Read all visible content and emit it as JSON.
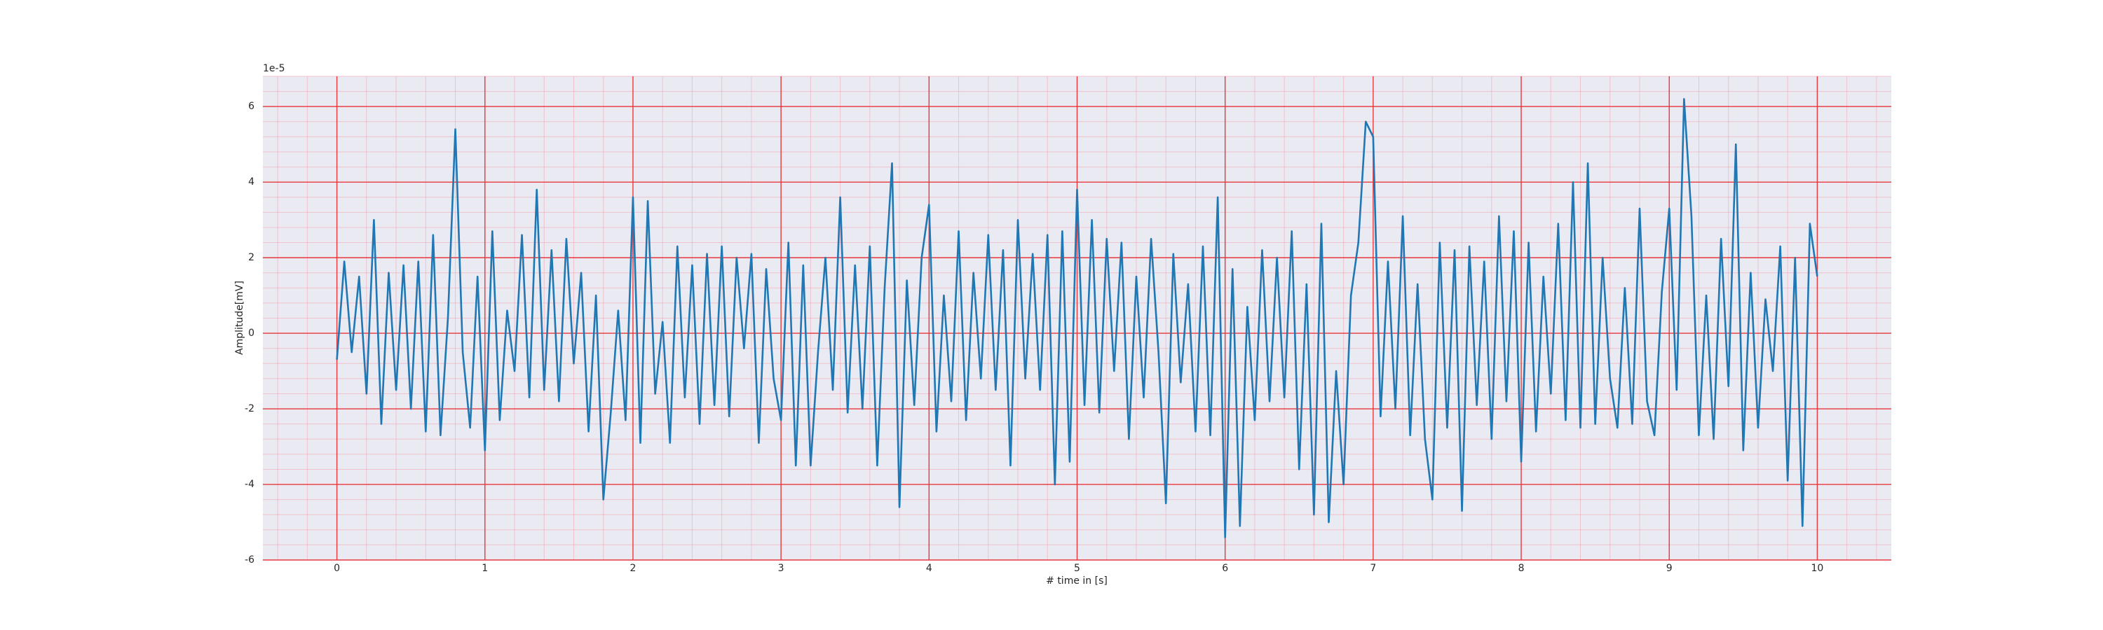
{
  "chart_data": {
    "type": "line",
    "x_label": "# time in [s]",
    "y_label": "Amplitude[mV]",
    "y_offset_text": "1e-5",
    "xlim": [
      -0.5,
      10.5
    ],
    "ylim": [
      -6,
      6.8
    ],
    "xticks": [
      0,
      1,
      2,
      3,
      4,
      5,
      6,
      7,
      8,
      9,
      10
    ],
    "yticks": [
      -6,
      -4,
      -2,
      0,
      2,
      4,
      6
    ],
    "grid": true,
    "minor_grid": true,
    "x": [
      0,
      0.05,
      0.1,
      0.15,
      0.2,
      0.25,
      0.3,
      0.35,
      0.4,
      0.45,
      0.5,
      0.55,
      0.6,
      0.65,
      0.7,
      0.75,
      0.8,
      0.85,
      0.9,
      0.95,
      1,
      1.05,
      1.1,
      1.15,
      1.2,
      1.25,
      1.3,
      1.35,
      1.4,
      1.45,
      1.5,
      1.55,
      1.6,
      1.65,
      1.7,
      1.75,
      1.8,
      1.85,
      1.9,
      1.95,
      2,
      2.05,
      2.1,
      2.15,
      2.2,
      2.25,
      2.3,
      2.35,
      2.4,
      2.45,
      2.5,
      2.55,
      2.6,
      2.65,
      2.7,
      2.75,
      2.8,
      2.85,
      2.9,
      2.95,
      3,
      3.05,
      3.1,
      3.15,
      3.2,
      3.25,
      3.3,
      3.35,
      3.4,
      3.45,
      3.5,
      3.55,
      3.6,
      3.65,
      3.7,
      3.75,
      3.8,
      3.85,
      3.9,
      3.95,
      4,
      4.05,
      4.1,
      4.15,
      4.2,
      4.25,
      4.3,
      4.35,
      4.4,
      4.45,
      4.5,
      4.55,
      4.6,
      4.65,
      4.7,
      4.75,
      4.8,
      4.85,
      4.9,
      4.95,
      5,
      5.05,
      5.1,
      5.15,
      5.2,
      5.25,
      5.3,
      5.35,
      5.4,
      5.45,
      5.5,
      5.55,
      5.6,
      5.65,
      5.7,
      5.75,
      5.8,
      5.85,
      5.9,
      5.95,
      6,
      6.05,
      6.1,
      6.15,
      6.2,
      6.25,
      6.3,
      6.35,
      6.4,
      6.45,
      6.5,
      6.55,
      6.6,
      6.65,
      6.7,
      6.75,
      6.8,
      6.85,
      6.9,
      6.95,
      7,
      7.05,
      7.1,
      7.15,
      7.2,
      7.25,
      7.3,
      7.35,
      7.4,
      7.45,
      7.5,
      7.55,
      7.6,
      7.65,
      7.7,
      7.75,
      7.8,
      7.85,
      7.9,
      7.95,
      8,
      8.05,
      8.1,
      8.15,
      8.2,
      8.25,
      8.3,
      8.35,
      8.4,
      8.45,
      8.5,
      8.55,
      8.6,
      8.65,
      8.7,
      8.75,
      8.8,
      8.85,
      8.9,
      8.95,
      9,
      9.05,
      9.1,
      9.15,
      9.2,
      9.25,
      9.3,
      9.35,
      9.4,
      9.45,
      9.5,
      9.55,
      9.6,
      9.65,
      9.7,
      9.75,
      9.8,
      9.85,
      9.9,
      9.95,
      10
    ],
    "series": [
      {
        "color": "#1f77b4",
        "values": [
          -0.7,
          1.9,
          -0.5,
          1.5,
          -1.6,
          3.0,
          -2.4,
          1.6,
          -1.5,
          1.8,
          -2.0,
          1.9,
          -2.6,
          2.6,
          -2.7,
          0.4,
          5.4,
          -0.5,
          -2.5,
          1.5,
          -3.1,
          2.7,
          -2.3,
          0.6,
          -1.0,
          2.6,
          -1.7,
          3.8,
          -1.5,
          2.2,
          -1.8,
          2.5,
          -0.8,
          1.6,
          -2.6,
          1.0,
          -4.4,
          -2.1,
          0.6,
          -2.3,
          3.6,
          -2.9,
          3.5,
          -1.6,
          0.3,
          -2.9,
          2.3,
          -1.7,
          1.8,
          -2.4,
          2.1,
          -1.9,
          2.3,
          -2.2,
          2.0,
          -0.4,
          2.1,
          -2.9,
          1.7,
          -1.2,
          -2.3,
          2.4,
          -3.5,
          1.8,
          -3.5,
          -0.5,
          2.0,
          -1.5,
          3.6,
          -2.1,
          1.8,
          -2.0,
          2.3,
          -3.5,
          1.2,
          4.5,
          -4.6,
          1.4,
          -1.9,
          2.0,
          3.4,
          -2.6,
          1.0,
          -1.8,
          2.7,
          -2.3,
          1.6,
          -1.2,
          2.6,
          -1.5,
          2.2,
          -3.5,
          3.0,
          -1.2,
          2.1,
          -1.5,
          2.6,
          -4.0,
          2.7,
          -3.4,
          3.8,
          -1.9,
          3.0,
          -2.1,
          2.5,
          -1.0,
          2.4,
          -2.8,
          1.5,
          -1.7,
          2.5,
          -0.5,
          -4.5,
          2.1,
          -1.3,
          1.3,
          -2.6,
          2.3,
          -2.7,
          3.6,
          -5.4,
          1.7,
          -5.1,
          0.7,
          -2.3,
          2.2,
          -1.8,
          2.0,
          -1.7,
          2.7,
          -3.6,
          1.3,
          -4.8,
          2.9,
          -5.0,
          -1.0,
          -4.0,
          1.0,
          2.4,
          5.6,
          5.2,
          -2.2,
          1.9,
          -2.0,
          3.1,
          -2.7,
          1.3,
          -2.8,
          -4.4,
          2.4,
          -2.5,
          2.2,
          -4.7,
          2.3,
          -1.9,
          1.9,
          -2.8,
          3.1,
          -1.8,
          2.7,
          -3.4,
          2.4,
          -2.6,
          1.5,
          -1.6,
          2.9,
          -2.3,
          4.0,
          -2.5,
          4.5,
          -2.4,
          2.0,
          -1.2,
          -2.5,
          1.2,
          -2.4,
          3.3,
          -1.8,
          -2.7,
          1.1,
          3.3,
          -1.5,
          6.2,
          3.1,
          -2.7,
          1.0,
          -2.8,
          2.5,
          -1.4,
          5.0,
          -3.1,
          1.6,
          -2.5,
          0.9,
          -1.0,
          2.3,
          -3.9,
          2.0,
          -5.1,
          2.9,
          1.5
        ]
      }
    ]
  }
}
